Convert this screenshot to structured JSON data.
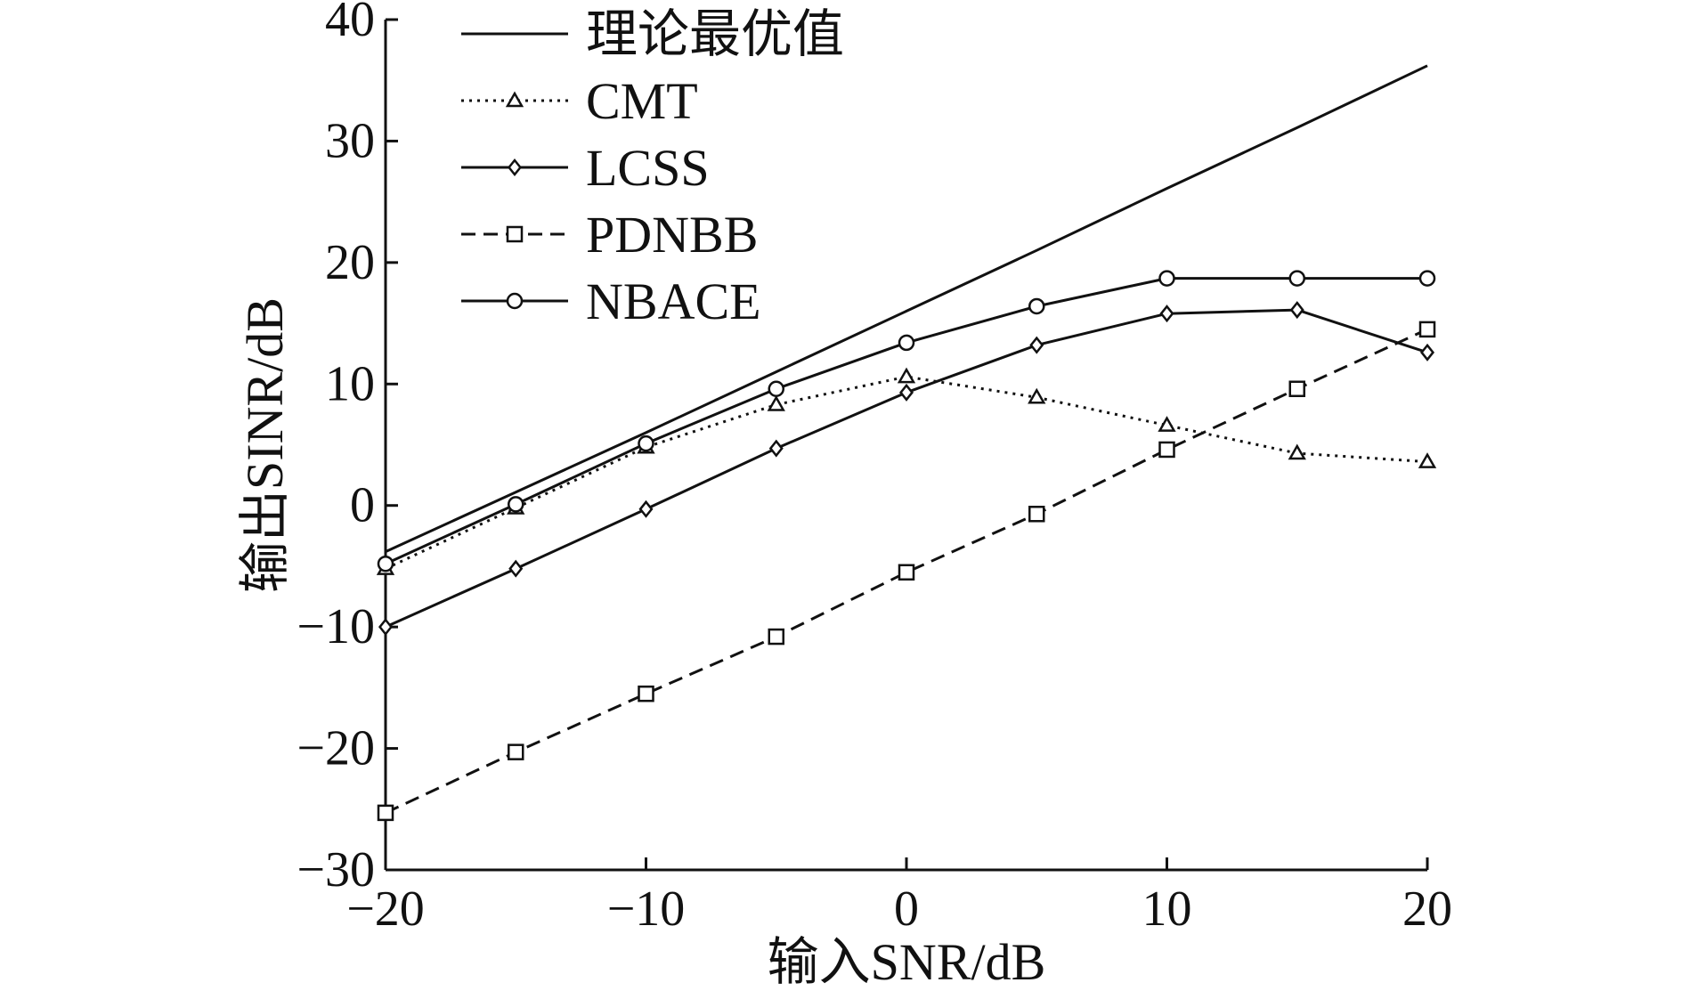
{
  "chart_data": {
    "type": "line",
    "title": "",
    "xlabel": "输入SNR/dB",
    "ylabel": "输出SINR/dB",
    "xlim": [
      -20,
      20
    ],
    "ylim": [
      -30,
      40
    ],
    "xticks": [
      -20,
      -10,
      0,
      10,
      20
    ],
    "xtick_labels": [
      "−20",
      "−10",
      "0",
      "10",
      "20"
    ],
    "yticks": [
      -30,
      -20,
      -10,
      0,
      10,
      20,
      30,
      40
    ],
    "ytick_labels": [
      "−30",
      "−20",
      "−10",
      "0",
      "10",
      "20",
      "30",
      "40"
    ],
    "grid": false,
    "legend_position": "top-left",
    "series": [
      {
        "name": "理论最优值",
        "marker": "none",
        "dash": "solid",
        "x": [
          -20,
          -15,
          -10,
          -5,
          0,
          5,
          10,
          15,
          20
        ],
        "values": [
          -3.8,
          1.1,
          6.0,
          11.0,
          16.0,
          21.0,
          26.1,
          31.1,
          36.2
        ]
      },
      {
        "name": "CMT",
        "marker": "triangle",
        "dash": "dotted",
        "x": [
          -20,
          -15,
          -10,
          -5,
          0,
          5,
          10,
          15,
          20
        ],
        "values": [
          -5.2,
          -0.2,
          4.8,
          8.3,
          10.6,
          8.9,
          6.6,
          4.3,
          3.6
        ]
      },
      {
        "name": "LCSS",
        "marker": "diamond",
        "dash": "solid",
        "x": [
          -20,
          -15,
          -10,
          -5,
          0,
          5,
          10,
          15,
          20
        ],
        "values": [
          -10.0,
          -5.2,
          -0.3,
          4.7,
          9.3,
          13.2,
          15.8,
          16.1,
          12.6
        ]
      },
      {
        "name": "PDNBB",
        "marker": "square",
        "dash": "dashed",
        "x": [
          -20,
          -15,
          -10,
          -5,
          0,
          5,
          10,
          15,
          20
        ],
        "values": [
          -25.3,
          -20.3,
          -15.5,
          -10.8,
          -5.5,
          -0.7,
          4.6,
          9.6,
          14.5
        ]
      },
      {
        "name": "NBACE",
        "marker": "circle",
        "dash": "solid",
        "x": [
          -20,
          -15,
          -10,
          -5,
          0,
          5,
          10,
          15,
          20
        ],
        "values": [
          -4.8,
          0.1,
          5.1,
          9.6,
          13.4,
          16.4,
          18.7,
          18.7,
          18.7
        ]
      }
    ]
  }
}
